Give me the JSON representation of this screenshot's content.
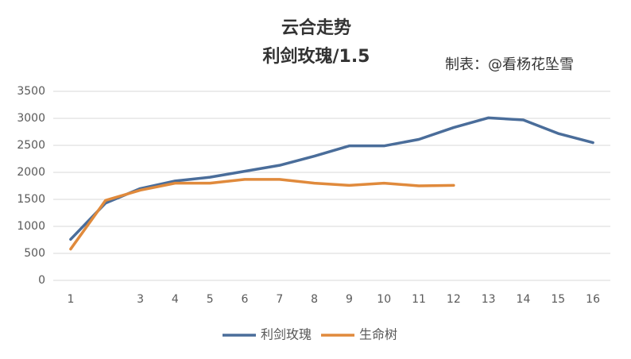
{
  "chart_data": {
    "type": "line",
    "title": "云合走势",
    "subtitle": "利剑玫瑰/1.5",
    "annotation": "制表：@看杨花坠雪",
    "categories": [
      "1",
      null,
      "3",
      "4",
      "5",
      "6",
      "7",
      "8",
      "9",
      "10",
      "11",
      "12",
      "13",
      "14",
      "15",
      "16"
    ],
    "series": [
      {
        "name": "利剑玫瑰",
        "color": "#4a6d9a",
        "values": [
          760,
          1430,
          1700,
          1840,
          1910,
          2020,
          2130,
          2300,
          2490,
          2490,
          2610,
          2830,
          3010,
          2970,
          2720,
          2550
        ]
      },
      {
        "name": "生命树",
        "color": "#e08a3c",
        "values": [
          580,
          1480,
          1670,
          1800,
          1800,
          1870,
          1870,
          1800,
          1760,
          1800,
          1750,
          1760,
          null,
          null,
          null,
          null
        ]
      }
    ],
    "ylim": [
      0,
      3500
    ],
    "yticks": [
      0,
      500,
      1000,
      1500,
      2000,
      2500,
      3000,
      3500
    ],
    "grid": true,
    "legend": "bottom"
  }
}
